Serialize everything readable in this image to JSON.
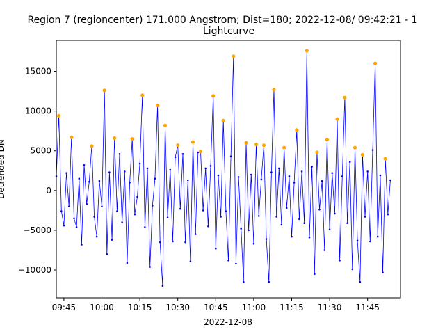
{
  "chart_data": {
    "type": "line",
    "title": "Region 7 (regioncenter) 171.000 Angstrom; Dist=180; 2022-12-08/ 09:42:21 - 1",
    "subtitle": "Lightcurve",
    "xlabel": "2022-12-08",
    "ylabel": "Detrended DN",
    "x_unit": "time (HH:MM, 2022-12-08)",
    "xlim": [
      "09:42",
      "11:58"
    ],
    "ylim": [
      -13500,
      18900
    ],
    "x_tick_labels": [
      "09:45",
      "10:00",
      "10:15",
      "10:30",
      "10:45",
      "11:00",
      "11:15",
      "11:30",
      "11:45"
    ],
    "y_ticks": [
      -10000,
      -5000,
      0,
      5000,
      10000,
      15000
    ],
    "y_tick_labels": [
      "−10000",
      "−5000",
      "0",
      "5000",
      "10000",
      "15000"
    ],
    "grid": false,
    "series": [
      {
        "color": "#0000ff",
        "marker": "dot",
        "points": [
          [
            "09:42",
            1800
          ],
          [
            "09:43",
            9400
          ],
          [
            "09:44",
            -2600
          ],
          [
            "09:45",
            -4400
          ],
          [
            "09:46",
            2200
          ],
          [
            "09:47",
            -2000
          ],
          [
            "09:48",
            6700
          ],
          [
            "09:49",
            -3500
          ],
          [
            "09:50",
            -4600
          ],
          [
            "09:51",
            1500
          ],
          [
            "09:52",
            -6800
          ],
          [
            "09:53",
            3200
          ],
          [
            "09:54",
            -1700
          ],
          [
            "09:55",
            1100
          ],
          [
            "09:56",
            5600
          ],
          [
            "09:57",
            -3300
          ],
          [
            "09:58",
            -5800
          ],
          [
            "09:59",
            1200
          ],
          [
            "10:00",
            -2000
          ],
          [
            "10:01",
            12600
          ],
          [
            "10:02",
            -8000
          ],
          [
            "10:03",
            2300
          ],
          [
            "10:04",
            -6200
          ],
          [
            "10:05",
            6600
          ],
          [
            "10:06",
            -2600
          ],
          [
            "10:07",
            4600
          ],
          [
            "10:08",
            -4000
          ],
          [
            "10:09",
            2400
          ],
          [
            "10:10",
            -9100
          ],
          [
            "10:11",
            1000
          ],
          [
            "10:12",
            6500
          ],
          [
            "10:13",
            -3000
          ],
          [
            "10:14",
            -800
          ],
          [
            "10:15",
            3400
          ],
          [
            "10:16",
            12000
          ],
          [
            "10:17",
            -4600
          ],
          [
            "10:18",
            2800
          ],
          [
            "10:19",
            -9600
          ],
          [
            "10:20",
            -1900
          ],
          [
            "10:21",
            1500
          ],
          [
            "10:22",
            10700
          ],
          [
            "10:23",
            -6500
          ],
          [
            "10:24",
            -12000
          ],
          [
            "10:25",
            8200
          ],
          [
            "10:26",
            -3400
          ],
          [
            "10:27",
            2600
          ],
          [
            "10:28",
            -6400
          ],
          [
            "10:29",
            4200
          ],
          [
            "10:30",
            5700
          ],
          [
            "10:31",
            -2300
          ],
          [
            "10:32",
            4600
          ],
          [
            "10:33",
            -6500
          ],
          [
            "10:34",
            1300
          ],
          [
            "10:35",
            -8900
          ],
          [
            "10:36",
            6100
          ],
          [
            "10:37",
            -5500
          ],
          [
            "10:38",
            4800
          ],
          [
            "10:39",
            4900
          ],
          [
            "10:40",
            -2500
          ],
          [
            "10:41",
            2800
          ],
          [
            "10:42",
            -4500
          ],
          [
            "10:43",
            3100
          ],
          [
            "10:44",
            11900
          ],
          [
            "10:45",
            -7300
          ],
          [
            "10:46",
            1900
          ],
          [
            "10:47",
            -3300
          ],
          [
            "10:48",
            8800
          ],
          [
            "10:49",
            -2600
          ],
          [
            "10:50",
            -8800
          ],
          [
            "10:51",
            4300
          ],
          [
            "10:52",
            16900
          ],
          [
            "10:53",
            -9200
          ],
          [
            "10:54",
            1700
          ],
          [
            "10:55",
            -4800
          ],
          [
            "10:56",
            -11500
          ],
          [
            "10:57",
            6000
          ],
          [
            "10:58",
            -5000
          ],
          [
            "10:59",
            2000
          ],
          [
            "11:00",
            -6700
          ],
          [
            "11:01",
            5800
          ],
          [
            "11:02",
            -3200
          ],
          [
            "11:03",
            1400
          ],
          [
            "11:04",
            5700
          ],
          [
            "11:05",
            -6100
          ],
          [
            "11:06",
            -11500
          ],
          [
            "11:07",
            2300
          ],
          [
            "11:08",
            12700
          ],
          [
            "11:09",
            -3300
          ],
          [
            "11:10",
            2800
          ],
          [
            "11:11",
            -4300
          ],
          [
            "11:12",
            5400
          ],
          [
            "11:13",
            -2200
          ],
          [
            "11:14",
            1800
          ],
          [
            "11:15",
            -5800
          ],
          [
            "11:16",
            1000
          ],
          [
            "11:17",
            7600
          ],
          [
            "11:18",
            -3600
          ],
          [
            "11:19",
            2400
          ],
          [
            "11:20",
            -4100
          ],
          [
            "11:21",
            17600
          ],
          [
            "11:22",
            -5900
          ],
          [
            "11:23",
            3000
          ],
          [
            "11:24",
            -10500
          ],
          [
            "11:25",
            4800
          ],
          [
            "11:26",
            -2400
          ],
          [
            "11:27",
            1200
          ],
          [
            "11:28",
            -7500
          ],
          [
            "11:29",
            6400
          ],
          [
            "11:30",
            -4900
          ],
          [
            "11:31",
            2200
          ],
          [
            "11:32",
            -2900
          ],
          [
            "11:33",
            9000
          ],
          [
            "11:34",
            -8800
          ],
          [
            "11:35",
            1800
          ],
          [
            "11:36",
            11700
          ],
          [
            "11:37",
            -4100
          ],
          [
            "11:38",
            3600
          ],
          [
            "11:39",
            -9900
          ],
          [
            "11:40",
            5400
          ],
          [
            "11:41",
            -6300
          ],
          [
            "11:42",
            -11500
          ],
          [
            "11:43",
            4500
          ],
          [
            "11:44",
            -3300
          ],
          [
            "11:45",
            2400
          ],
          [
            "11:46",
            -6400
          ],
          [
            "11:47",
            5100
          ],
          [
            "11:48",
            16000
          ],
          [
            "11:49",
            -5800
          ],
          [
            "11:50",
            1900
          ],
          [
            "11:51",
            -10300
          ],
          [
            "11:52",
            4000
          ],
          [
            "11:53",
            -3000
          ],
          [
            "11:54",
            1300
          ]
        ]
      }
    ],
    "highlighted_peaks": {
      "color": "#ffa500",
      "points": [
        [
          "09:43",
          9400
        ],
        [
          "09:48",
          6700
        ],
        [
          "09:56",
          5600
        ],
        [
          "10:01",
          12600
        ],
        [
          "10:05",
          6600
        ],
        [
          "10:12",
          6500
        ],
        [
          "10:16",
          12000
        ],
        [
          "10:22",
          10700
        ],
        [
          "10:25",
          8200
        ],
        [
          "10:30",
          5700
        ],
        [
          "10:36",
          6100
        ],
        [
          "10:39",
          4900
        ],
        [
          "10:44",
          11900
        ],
        [
          "10:48",
          8800
        ],
        [
          "10:52",
          16900
        ],
        [
          "10:57",
          6000
        ],
        [
          "11:01",
          5800
        ],
        [
          "11:04",
          5700
        ],
        [
          "11:08",
          12700
        ],
        [
          "11:12",
          5400
        ],
        [
          "11:17",
          7600
        ],
        [
          "11:21",
          17600
        ],
        [
          "11:25",
          4800
        ],
        [
          "11:29",
          6400
        ],
        [
          "11:33",
          9000
        ],
        [
          "11:36",
          11700
        ],
        [
          "11:40",
          5400
        ],
        [
          "11:43",
          4500
        ],
        [
          "11:48",
          16000
        ],
        [
          "11:52",
          4000
        ]
      ]
    }
  }
}
